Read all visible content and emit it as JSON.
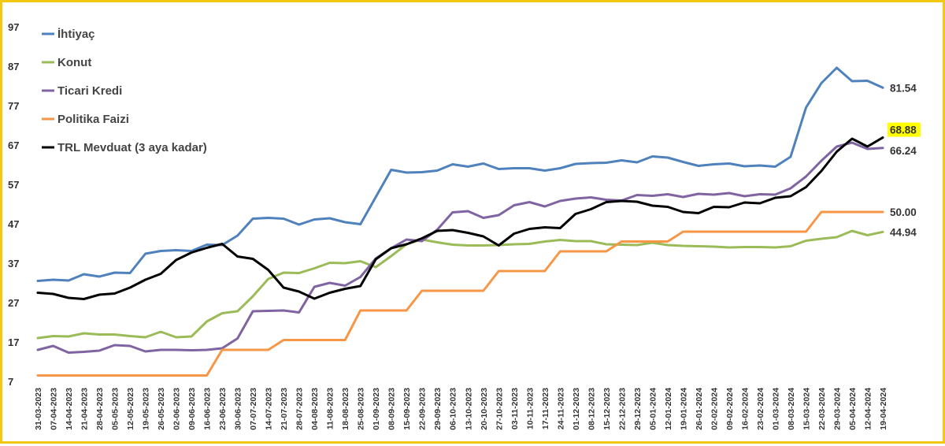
{
  "chart_data": {
    "type": "line",
    "ylim": [
      7,
      97
    ],
    "yticks": [
      7,
      17,
      27,
      37,
      47,
      57,
      67,
      77,
      87,
      97
    ],
    "grid": false,
    "legend_position": "top-left",
    "x": [
      "31-03-2023",
      "07-04-2023",
      "14-04-2023",
      "21-04-2023",
      "28-04-2023",
      "05-05-2023",
      "12-05-2023",
      "19-05-2023",
      "26-05-2023",
      "02-06-2023",
      "09-06-2023",
      "16-06-2023",
      "23-06-2023",
      "30-06-2023",
      "07-07-2023",
      "14-07-2023",
      "21-07-2023",
      "28-07-2023",
      "04-08-2023",
      "11-08-2023",
      "18-08-2023",
      "25-08-2023",
      "01-09-2023",
      "08-09-2023",
      "15-09-2023",
      "22-09-2023",
      "29-09-2023",
      "06-10-2023",
      "13-10-2023",
      "20-10-2023",
      "27-10-2023",
      "03-11-2023",
      "10-11-2023",
      "17-11-2023",
      "24-11-2023",
      "01-12-2023",
      "08-12-2023",
      "15-12-2023",
      "22-12-2023",
      "29-12-2023",
      "05-01-2024",
      "12-01-2024",
      "19-01-2024",
      "26-01-2024",
      "02-02-2024",
      "09-02-2024",
      "16-02-2024",
      "23-02-2024",
      "01-03-2024",
      "08-03-2024",
      "15-03-2024",
      "22-03-2024",
      "29-03-2024",
      "05-04-2024",
      "12-04-2024",
      "19-04-2024"
    ],
    "series": [
      {
        "name": "İhtiyaç",
        "color": "#4f81bd",
        "end_label": "81.54",
        "values": [
          32.5,
          32.8,
          32.6,
          34.2,
          33.6,
          34.6,
          34.5,
          39.4,
          40.1,
          40.3,
          40.1,
          41.7,
          41.6,
          44.0,
          48.3,
          48.5,
          48.3,
          46.8,
          48.1,
          48.4,
          47.4,
          46.9,
          53.8,
          60.7,
          60.0,
          60.1,
          60.5,
          62.1,
          61.5,
          62.3,
          60.9,
          61.1,
          61.1,
          60.5,
          61.1,
          62.2,
          62.4,
          62.5,
          63.1,
          62.6,
          64.1,
          63.8,
          62.7,
          61.7,
          62.1,
          62.3,
          61.6,
          61.8,
          61.5,
          64.0,
          76.5,
          82.7,
          86.6,
          83.2,
          83.3,
          81.54
        ]
      },
      {
        "name": "Konut",
        "color": "#9bbb59",
        "end_label": "44.94",
        "values": [
          18.0,
          18.5,
          18.4,
          19.2,
          18.9,
          18.9,
          18.5,
          18.2,
          19.6,
          18.2,
          18.4,
          22.2,
          24.3,
          24.8,
          28.6,
          33.0,
          34.6,
          34.5,
          35.7,
          37.1,
          37.0,
          37.5,
          36.0,
          38.8,
          41.8,
          43.0,
          42.3,
          41.7,
          41.5,
          41.5,
          41.6,
          41.8,
          41.9,
          42.5,
          42.9,
          42.6,
          42.6,
          41.8,
          41.7,
          41.6,
          42.2,
          41.6,
          41.4,
          41.3,
          41.2,
          41.0,
          41.1,
          41.1,
          41.0,
          41.3,
          42.7,
          43.2,
          43.6,
          45.2,
          44.1,
          44.94
        ]
      },
      {
        "name": "Ticari Kredi",
        "color": "#8064a2",
        "end_label": "66.24",
        "values": [
          15.0,
          16.0,
          14.3,
          14.5,
          14.8,
          16.2,
          16.0,
          14.6,
          15.0,
          15.0,
          14.9,
          15.0,
          15.4,
          17.9,
          24.8,
          24.9,
          25.0,
          24.5,
          31.0,
          32.0,
          31.3,
          33.5,
          38.2,
          40.8,
          43.0,
          42.6,
          45.5,
          49.9,
          50.2,
          48.5,
          49.2,
          51.7,
          52.5,
          51.4,
          52.8,
          53.4,
          53.7,
          53.1,
          52.9,
          54.3,
          54.1,
          54.5,
          53.8,
          54.6,
          54.4,
          54.8,
          54.0,
          54.5,
          54.4,
          56.0,
          59.0,
          63.0,
          66.6,
          67.6,
          66.0,
          66.24
        ]
      },
      {
        "name": "Politika Faizi",
        "color": "#f79646",
        "end_label": "50.00",
        "values": [
          8.5,
          8.5,
          8.5,
          8.5,
          8.5,
          8.5,
          8.5,
          8.5,
          8.5,
          8.5,
          8.5,
          8.5,
          15.0,
          15.0,
          15.0,
          15.0,
          17.5,
          17.5,
          17.5,
          17.5,
          17.5,
          25.0,
          25.0,
          25.0,
          25.0,
          30.0,
          30.0,
          30.0,
          30.0,
          30.0,
          35.0,
          35.0,
          35.0,
          35.0,
          40.0,
          40.0,
          40.0,
          40.0,
          42.5,
          42.5,
          42.5,
          42.5,
          45.0,
          45.0,
          45.0,
          45.0,
          45.0,
          45.0,
          45.0,
          45.0,
          45.0,
          50.0,
          50.0,
          50.0,
          50.0,
          50.0
        ]
      },
      {
        "name": "TRL Mevduat (3 aya kadar)",
        "color": "#000000",
        "end_label": "68.88",
        "values": [
          29.5,
          29.2,
          28.2,
          27.9,
          29.0,
          29.3,
          30.8,
          32.8,
          34.3,
          37.8,
          39.7,
          40.9,
          41.9,
          38.7,
          38.1,
          35.3,
          30.8,
          29.8,
          28.0,
          29.5,
          30.5,
          31.2,
          38.0,
          40.8,
          41.8,
          43.3,
          45.2,
          45.4,
          44.7,
          43.8,
          41.5,
          44.5,
          45.7,
          46.1,
          45.9,
          49.5,
          50.7,
          52.5,
          52.8,
          52.6,
          51.6,
          51.3,
          50.0,
          49.7,
          51.3,
          51.2,
          52.4,
          52.2,
          53.6,
          54.0,
          56.3,
          60.4,
          65.3,
          68.6,
          66.6,
          68.88
        ]
      }
    ]
  }
}
